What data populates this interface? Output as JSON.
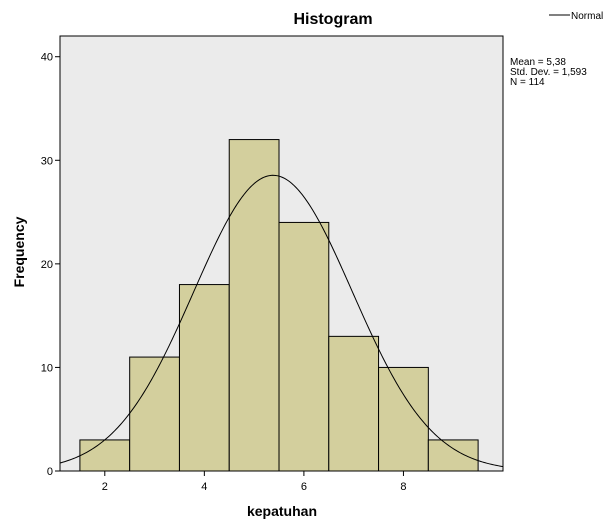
{
  "chart_data": {
    "type": "bar",
    "title": "Histogram",
    "xlabel": "kepatuhan",
    "ylabel": "Frequency",
    "bins": [
      {
        "x0": 1.5,
        "x1": 2.5,
        "value": 3
      },
      {
        "x0": 2.5,
        "x1": 3.5,
        "value": 11
      },
      {
        "x0": 3.5,
        "x1": 4.5,
        "value": 18
      },
      {
        "x0": 4.5,
        "x1": 5.5,
        "value": 32
      },
      {
        "x0": 5.5,
        "x1": 6.5,
        "value": 24
      },
      {
        "x0": 6.5,
        "x1": 7.5,
        "value": 13
      },
      {
        "x0": 7.5,
        "x1": 8.5,
        "value": 10
      },
      {
        "x0": 8.5,
        "x1": 9.5,
        "value": 3
      }
    ],
    "xlim": [
      1.1,
      10.0
    ],
    "ylim": [
      0,
      42
    ],
    "xticks": [
      2,
      4,
      6,
      8
    ],
    "yticks": [
      0,
      10,
      20,
      30,
      40
    ],
    "grid": false,
    "normal_curve": {
      "mean": 5.38,
      "sd": 1.593,
      "n": 114,
      "bin_width": 1
    },
    "legend": {
      "label": "Normal",
      "position": "top-right"
    },
    "stats": [
      "Mean = 5,38",
      "Std. Dev. = 1,593",
      "N = 114"
    ],
    "colors": {
      "bar_fill": "#d3cf9d",
      "bar_stroke": "#000000",
      "plot_background": "#ebebeb",
      "curve": "#000000"
    }
  }
}
